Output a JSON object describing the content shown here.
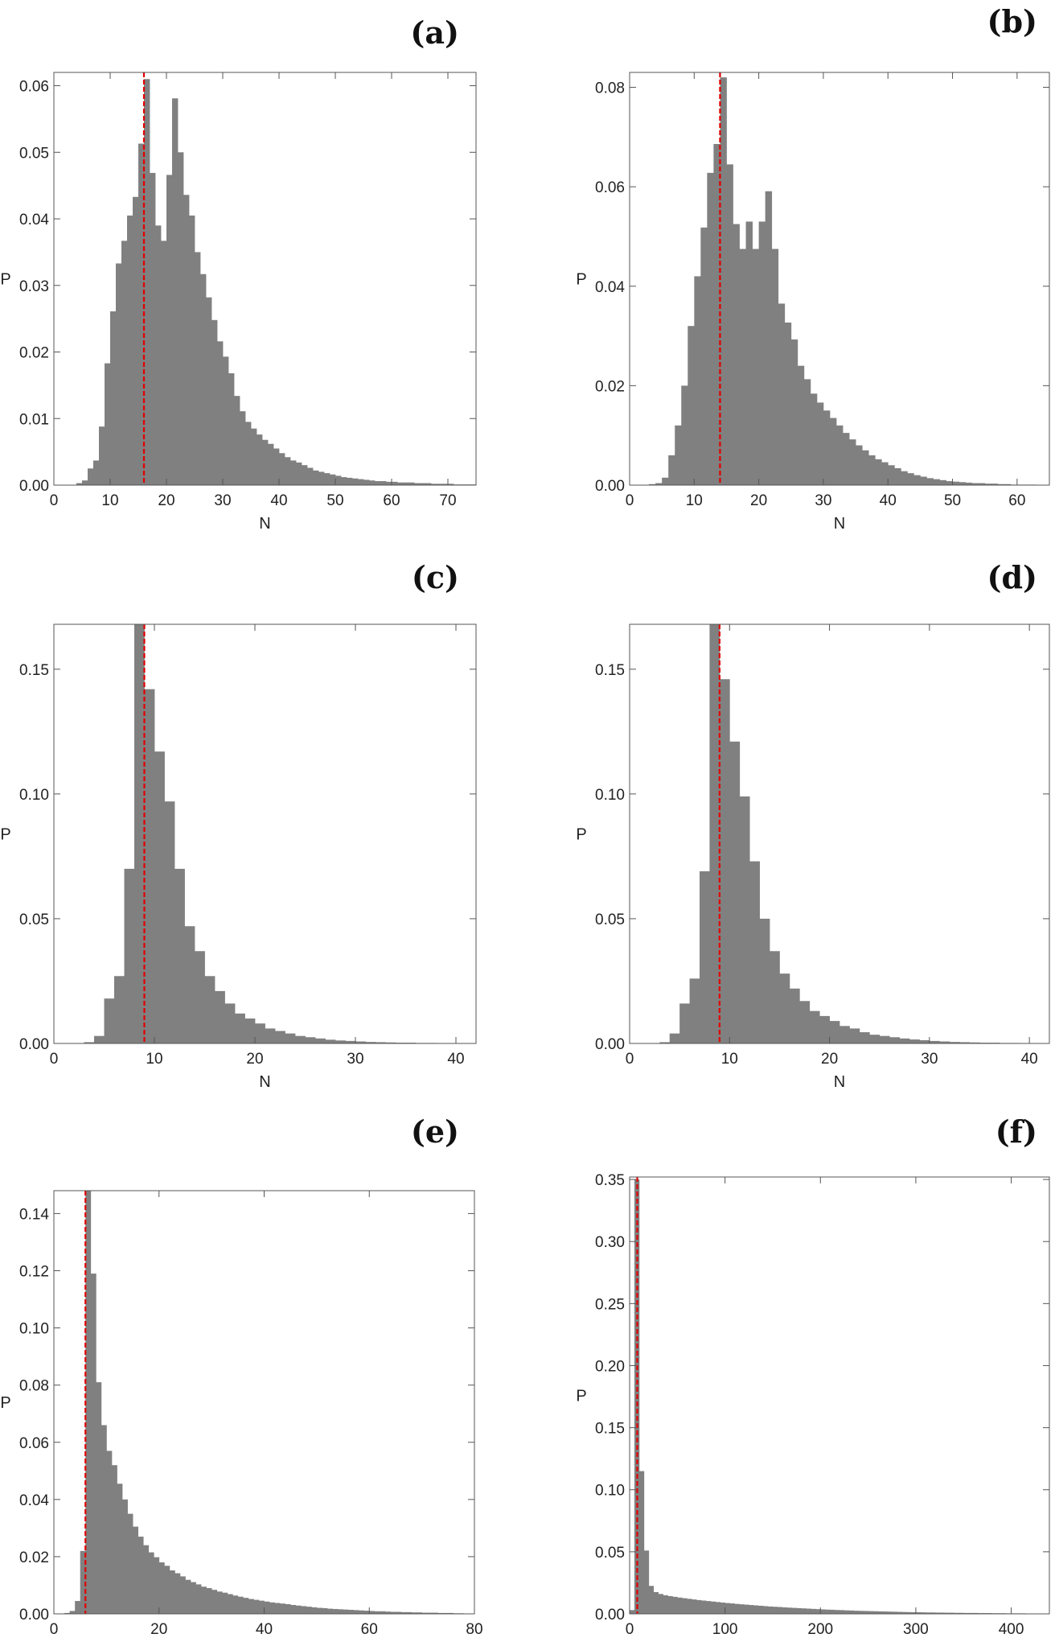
{
  "chart_data": [
    {
      "label": "(a)",
      "type": "bar",
      "xlabel": "N",
      "ylabel": "P",
      "xlim": [
        0,
        75
      ],
      "ylim": [
        0,
        0.062
      ],
      "bin_width": 1,
      "x_start": 4,
      "xticks": [
        0,
        10,
        20,
        30,
        40,
        50,
        60,
        70
      ],
      "yticks": [
        0.0,
        0.01,
        0.02,
        0.03,
        0.04,
        0.05,
        0.06
      ],
      "ytick_decimals": 2,
      "vline": 16,
      "values": [
        0.0003,
        0.0007,
        0.0025,
        0.0037,
        0.0088,
        0.0183,
        0.0261,
        0.0333,
        0.0367,
        0.0405,
        0.0433,
        0.0513,
        0.061,
        0.0469,
        0.039,
        0.0367,
        0.0466,
        0.0581,
        0.05,
        0.0436,
        0.0405,
        0.035,
        0.0317,
        0.0282,
        0.0248,
        0.0216,
        0.0193,
        0.0168,
        0.0134,
        0.0111,
        0.0095,
        0.0085,
        0.0076,
        0.0068,
        0.0062,
        0.0055,
        0.0048,
        0.0042,
        0.0037,
        0.0034,
        0.003,
        0.0026,
        0.0022,
        0.002,
        0.0018,
        0.0016,
        0.0014,
        0.0012,
        0.0011,
        0.001,
        0.0009,
        0.0008,
        0.0007,
        0.0006,
        0.0006,
        0.0005,
        0.0005,
        0.0004,
        0.0004,
        0.0004,
        0.0003,
        0.0003,
        0.0003,
        0.0002,
        0.0002,
        0.0002,
        0.0002,
        0.0001,
        0.0001,
        0.0001,
        0.0001
      ]
    },
    {
      "label": "(b)",
      "type": "bar",
      "xlabel": "N",
      "ylabel": "P",
      "xlim": [
        0,
        65
      ],
      "ylim": [
        0,
        0.083
      ],
      "bin_width": 1,
      "x_start": 3,
      "xticks": [
        0,
        10,
        20,
        30,
        40,
        50,
        60
      ],
      "yticks": [
        0.0,
        0.02,
        0.04,
        0.06,
        0.08
      ],
      "ytick_decimals": 2,
      "vline": 14,
      "values": [
        0.0002,
        0.0004,
        0.0015,
        0.006,
        0.012,
        0.02,
        0.032,
        0.042,
        0.0518,
        0.0628,
        0.0686,
        0.082,
        0.0645,
        0.0525,
        0.0475,
        0.053,
        0.0475,
        0.053,
        0.0591,
        0.0475,
        0.0365,
        0.0327,
        0.0293,
        0.024,
        0.0213,
        0.0184,
        0.0166,
        0.015,
        0.0135,
        0.012,
        0.0105,
        0.0092,
        0.008,
        0.007,
        0.006,
        0.0052,
        0.0046,
        0.004,
        0.0034,
        0.0028,
        0.0024,
        0.002,
        0.0017,
        0.0014,
        0.0012,
        0.001,
        0.0008,
        0.0007,
        0.0006,
        0.0005,
        0.0004,
        0.0004,
        0.0003,
        0.0003,
        0.0002,
        0.0002,
        0.0001,
        0.0001,
        0.0001,
        0.0001
      ]
    },
    {
      "label": "(c)",
      "type": "bar",
      "xlabel": "N",
      "ylabel": "P",
      "xlim": [
        0,
        42
      ],
      "ylim": [
        0,
        0.168
      ],
      "bin_width": 1,
      "x_start": 3,
      "xticks": [
        0,
        10,
        20,
        30,
        40
      ],
      "yticks": [
        0.0,
        0.05,
        0.1,
        0.15
      ],
      "ytick_decimals": 2,
      "vline": 9,
      "values": [
        0.0005,
        0.003,
        0.018,
        0.027,
        0.07,
        0.168,
        0.142,
        0.117,
        0.097,
        0.07,
        0.047,
        0.037,
        0.027,
        0.021,
        0.016,
        0.012,
        0.01,
        0.008,
        0.006,
        0.005,
        0.004,
        0.003,
        0.0025,
        0.002,
        0.0015,
        0.0012,
        0.001,
        0.0008,
        0.0006,
        0.0005,
        0.0004,
        0.0003,
        0.0003,
        0.0002,
        0.0002,
        0.0001,
        0.0001,
        0.0001,
        0.0001
      ]
    },
    {
      "label": "(d)",
      "type": "bar",
      "xlabel": "N",
      "ylabel": "P",
      "xlim": [
        0,
        42
      ],
      "ylim": [
        0,
        0.168
      ],
      "bin_width": 1,
      "x_start": 3,
      "xticks": [
        0,
        10,
        20,
        30,
        40
      ],
      "yticks": [
        0.0,
        0.05,
        0.1,
        0.15
      ],
      "ytick_decimals": 2,
      "vline": 9,
      "values": [
        0.0005,
        0.004,
        0.016,
        0.026,
        0.069,
        0.168,
        0.146,
        0.121,
        0.099,
        0.073,
        0.05,
        0.037,
        0.028,
        0.022,
        0.017,
        0.013,
        0.011,
        0.009,
        0.007,
        0.006,
        0.0045,
        0.0035,
        0.003,
        0.0025,
        0.002,
        0.0016,
        0.0013,
        0.001,
        0.0008,
        0.0006,
        0.0005,
        0.0004,
        0.0003,
        0.0003,
        0.0002,
        0.0002,
        0.0001,
        0.0001,
        0.0001
      ]
    },
    {
      "label": "(e)",
      "type": "bar",
      "xlabel": "N",
      "ylabel": "P",
      "xlim": [
        0,
        80
      ],
      "ylim": [
        0,
        0.148
      ],
      "bin_width": 1,
      "x_start": 2,
      "xticks": [
        0,
        20,
        40,
        60,
        80
      ],
      "yticks": [
        0.0,
        0.02,
        0.04,
        0.06,
        0.08,
        0.1,
        0.12,
        0.14
      ],
      "ytick_decimals": 2,
      "vline": 6,
      "values": [
        0.0003,
        0.001,
        0.0045,
        0.022,
        0.148,
        0.119,
        0.081,
        0.066,
        0.057,
        0.052,
        0.0455,
        0.04,
        0.035,
        0.0305,
        0.027,
        0.024,
        0.0215,
        0.0198,
        0.018,
        0.0168,
        0.0152,
        0.0142,
        0.0131,
        0.0119,
        0.0111,
        0.0103,
        0.0095,
        0.009,
        0.0084,
        0.0078,
        0.0074,
        0.0069,
        0.0064,
        0.006,
        0.0056,
        0.0052,
        0.0049,
        0.0046,
        0.0043,
        0.004,
        0.0038,
        0.0036,
        0.0034,
        0.0031,
        0.0029,
        0.0027,
        0.0025,
        0.0023,
        0.0021,
        0.002,
        0.0018,
        0.0017,
        0.0016,
        0.0015,
        0.0014,
        0.0013,
        0.0012,
        0.0011,
        0.001,
        0.0009,
        0.0009,
        0.0008,
        0.0007,
        0.0007,
        0.0006,
        0.0006,
        0.0005,
        0.0005,
        0.0004,
        0.0004,
        0.0004,
        0.0003,
        0.0003,
        0.0003,
        0.0002,
        0.0002
      ]
    },
    {
      "label": "(f)",
      "type": "bar",
      "xlabel": "N",
      "ylabel": "P",
      "xlim": [
        0,
        440
      ],
      "ylim": [
        0,
        0.352
      ],
      "bin_width": 5,
      "x_start": 0,
      "xticks": [
        0,
        100,
        200,
        300,
        400
      ],
      "yticks": [
        0.0,
        0.05,
        0.1,
        0.15,
        0.2,
        0.25,
        0.3,
        0.35
      ],
      "ytick_decimals": 2,
      "vline": 8,
      "values": [
        0.003,
        0.35,
        0.115,
        0.051,
        0.0225,
        0.0175,
        0.016,
        0.015,
        0.0143,
        0.0137,
        0.0131,
        0.0126,
        0.0121,
        0.0116,
        0.0111,
        0.0107,
        0.0103,
        0.0099,
        0.0095,
        0.0091,
        0.0087,
        0.0084,
        0.008,
        0.0077,
        0.0074,
        0.0071,
        0.0068,
        0.0065,
        0.0062,
        0.0059,
        0.0057,
        0.0055,
        0.0052,
        0.005,
        0.0048,
        0.0046,
        0.0044,
        0.0042,
        0.004,
        0.0038,
        0.0036,
        0.0034,
        0.0033,
        0.0031,
        0.003,
        0.0028,
        0.0027,
        0.0025,
        0.0024,
        0.0023,
        0.0022,
        0.0021,
        0.002,
        0.0019,
        0.0018,
        0.0017,
        0.0016,
        0.0015,
        0.0014,
        0.0013,
        0.0013,
        0.0012,
        0.0011,
        0.0011,
        0.001,
        0.001,
        0.0009,
        0.0009,
        0.0008,
        0.0008,
        0.0007,
        0.0007,
        0.0007,
        0.0006,
        0.0006,
        0.0006,
        0.0005,
        0.0005,
        0.0005,
        0.0004,
        0.0004,
        0.0004,
        0.0004,
        0.0003,
        0.0003,
        0.0003,
        0.0003,
        0.0003
      ]
    }
  ]
}
